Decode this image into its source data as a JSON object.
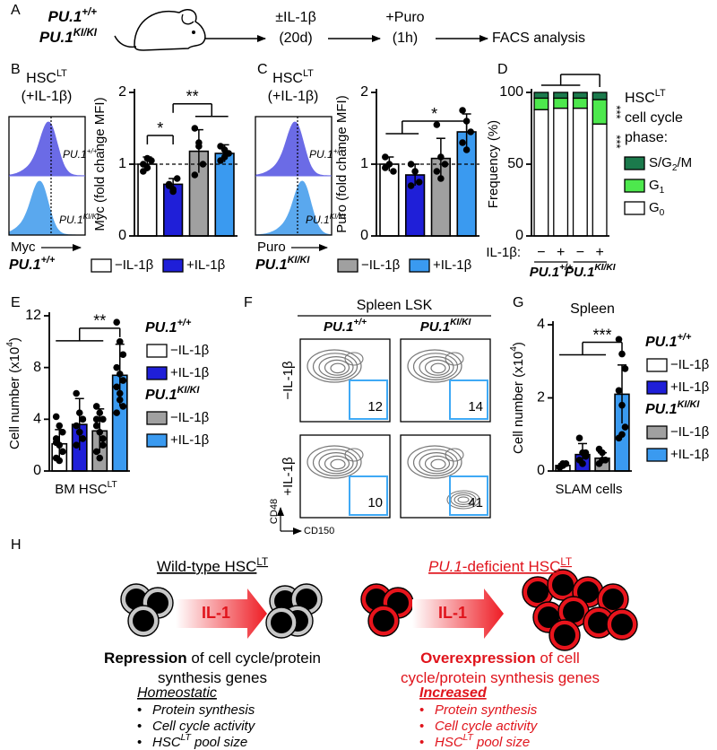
{
  "panel_labels": [
    "A",
    "B",
    "C",
    "D",
    "E",
    "F",
    "G",
    "H"
  ],
  "schematic": {
    "genotypes": [
      [
        {
          "text": "PU.1",
          "i": true
        },
        {
          "text": "+/+",
          "i": true,
          "sup": true
        }
      ],
      [
        {
          "text": "PU.1",
          "i": true
        },
        {
          "text": "KI/KI",
          "i": true,
          "sup": true
        }
      ]
    ],
    "steps": [
      [
        "±IL-1β",
        "(20d)"
      ],
      [
        "+Puro",
        "(1h)"
      ],
      [
        "FACS analysis"
      ]
    ]
  },
  "chart_data": [
    {
      "type": "bar",
      "categories": [
        null,
        null,
        null,
        null
      ],
      "colors": [
        "#ffffff",
        "#1f1fd8",
        "#a0a0a0",
        "#3a9af0"
      ],
      "values": [
        1.0,
        0.72,
        1.18,
        1.15
      ],
      "errors": [
        0.1,
        0.08,
        0.3,
        0.12
      ],
      "points": [
        [
          1.0,
          0.95,
          1.05,
          0.9,
          1.08
        ],
        [
          0.72,
          0.65,
          0.8,
          0.7,
          0.62
        ],
        [
          1.5,
          1.3,
          1.0,
          0.85,
          1.25
        ],
        [
          1.25,
          1.2,
          1.15,
          1.05,
          1.1
        ]
      ],
      "y_label": "Myc (fold change MFI)",
      "ylim": [
        0,
        2
      ],
      "yticks": [
        0,
        1,
        2
      ],
      "reference_line": 1,
      "annotations": [
        "*",
        "**"
      ],
      "histogram": {
        "title": [
          {
            "text": "HSC"
          },
          {
            "text": "LT",
            "sup": true
          }
        ],
        "subtitle": "(+IL-1β)",
        "tracks": [
          [
            {
              "text": "PU.1",
              "i": true
            },
            {
              "text": "+/+",
              "i": true,
              "sup": true
            }
          ],
          [
            {
              "text": "PU.1",
              "i": true
            },
            {
              "text": "KI/KI",
              "i": true,
              "sup": true
            }
          ]
        ],
        "x_label": "Myc"
      },
      "legend": [
        {
          "group": [
            {
              "text": "PU.1",
              "i": true
            },
            {
              "text": "+/+",
              "i": true,
              "sup": true
            }
          ],
          "entries": [
            {
              "label": "−IL-1β",
              "color": "#ffffff"
            },
            {
              "label": "+IL-1β",
              "color": "#1f1fd8"
            }
          ]
        }
      ]
    },
    {
      "type": "bar",
      "categories": [
        null,
        null,
        null,
        null
      ],
      "colors": [
        "#ffffff",
        "#1f1fd8",
        "#a0a0a0",
        "#3a9af0"
      ],
      "values": [
        1.0,
        0.85,
        1.08,
        1.45
      ],
      "errors": [
        0.1,
        0.15,
        0.28,
        0.25
      ],
      "points": [
        [
          1.1,
          1.0,
          0.9,
          0.95
        ],
        [
          1.0,
          0.9,
          0.75,
          0.7
        ],
        [
          1.55,
          1.1,
          1.0,
          0.9,
          0.8
        ],
        [
          1.75,
          1.6,
          1.45,
          1.3,
          1.2
        ]
      ],
      "y_label": "Puro (fold change MFI)",
      "ylim": [
        0,
        2
      ],
      "yticks": [
        0,
        1,
        2
      ],
      "reference_line": 1,
      "annotations": [
        "*"
      ],
      "histogram": {
        "title": [
          {
            "text": "HSC"
          },
          {
            "text": "LT",
            "sup": true
          }
        ],
        "subtitle": "(+IL-1β)",
        "tracks": [
          [
            {
              "text": "PU.1",
              "i": true
            },
            {
              "text": "+/+",
              "i": true,
              "sup": true
            }
          ],
          [
            {
              "text": "PU.1",
              "i": true
            },
            {
              "text": "KI/KI",
              "i": true,
              "sup": true
            }
          ]
        ],
        "x_label": "Puro"
      },
      "legend": [
        {
          "group": [
            {
              "text": "PU.1",
              "i": true
            },
            {
              "text": "KI/KI",
              "i": true,
              "sup": true
            }
          ],
          "entries": [
            {
              "label": "−IL-1β",
              "color": "#a0a0a0"
            },
            {
              "label": "+IL-1β",
              "color": "#3a9af0"
            }
          ]
        }
      ]
    },
    {
      "type": "stacked_bar",
      "categories": [
        "−",
        "+",
        "−",
        "+"
      ],
      "category_label": "IL-1β:",
      "groups": [
        [
          {
            "text": "PU.1",
            "i": true
          },
          {
            "text": "+/+",
            "i": true,
            "sup": true
          }
        ],
        [
          {
            "text": "PU.1",
            "i": true
          },
          {
            "text": "KI/KI",
            "i": true,
            "sup": true
          }
        ]
      ],
      "series": [
        {
          "name": [
            {
              "text": "G"
            },
            {
              "text": "0",
              "sub": true
            }
          ],
          "color": "#ffffff",
          "values": [
            88,
            89,
            89,
            78
          ]
        },
        {
          "name": [
            {
              "text": "G"
            },
            {
              "text": "1",
              "sub": true
            }
          ],
          "color": "#4de84d",
          "values": [
            8,
            7,
            7,
            17
          ]
        },
        {
          "name": [
            {
              "text": "S/G"
            },
            {
              "text": "2",
              "sub": true
            },
            {
              "text": "/M"
            }
          ],
          "color": "#1b7a4c",
          "values": [
            4,
            4,
            4,
            5
          ]
        }
      ],
      "legend_title": [
        [
          {
            "text": "HSC"
          },
          {
            "text": "LT",
            "sup": true
          }
        ],
        "cell cycle",
        "phase:"
      ],
      "y_label": "Frequency (%)",
      "ylim": [
        0,
        100
      ],
      "yticks": [
        0,
        50,
        100
      ],
      "annotations": [
        "***",
        "***"
      ]
    },
    {
      "type": "bar",
      "categories": [
        null,
        null,
        null,
        null
      ],
      "colors": [
        "#ffffff",
        "#1f1fd8",
        "#a0a0a0",
        "#3a9af0"
      ],
      "values": [
        2.1,
        3.6,
        3.1,
        7.4
      ],
      "errors": [
        1.1,
        2.0,
        1.7,
        2.4
      ],
      "points": [
        [
          4.2,
          3.5,
          3,
          2.5,
          2,
          1.5,
          1,
          0.8,
          1.5,
          2.2
        ],
        [
          6,
          4.5,
          4,
          3.5,
          3,
          2.5,
          2,
          3,
          4
        ],
        [
          5,
          4.5,
          4,
          3.5,
          3,
          2.5,
          1.5,
          1,
          2,
          4
        ],
        [
          11.5,
          10,
          9,
          8,
          7.5,
          7,
          6.5,
          5.5,
          5,
          4.5,
          6
        ]
      ],
      "y_label": [
        {
          "text": "Cell number (x10"
        },
        {
          "text": "4",
          "sup": true
        },
        {
          "text": ")"
        }
      ],
      "x_label": [
        {
          "text": "BM HSC"
        },
        {
          "text": "LT",
          "sup": true
        }
      ],
      "ylim": [
        0,
        12
      ],
      "yticks": [
        0,
        4,
        8,
        12
      ],
      "annotations": [
        "**"
      ],
      "legend": [
        {
          "group": [
            {
              "text": "PU.1",
              "i": true
            },
            {
              "text": "+/+",
              "i": true,
              "sup": true
            }
          ],
          "entries": [
            {
              "label": "−IL-1β",
              "color": "#ffffff"
            },
            {
              "label": "+IL-1β",
              "color": "#1f1fd8"
            }
          ]
        },
        {
          "group": [
            {
              "text": "PU.1",
              "i": true
            },
            {
              "text": "KI/KI",
              "i": true,
              "sup": true
            }
          ],
          "entries": [
            {
              "label": "−IL-1β",
              "color": "#a0a0a0"
            },
            {
              "label": "+IL-1β",
              "color": "#3a9af0"
            }
          ]
        }
      ]
    },
    {
      "type": "bar",
      "categories": [
        null,
        null,
        null,
        null
      ],
      "colors": [
        "#ffffff",
        "#1f1fd8",
        "#a0a0a0",
        "#3a9af0"
      ],
      "values": [
        0.15,
        0.45,
        0.35,
        2.1
      ],
      "errors": [
        0.05,
        0.3,
        0.15,
        0.8
      ],
      "points": [
        [
          0.1,
          0.15,
          0.2,
          0.1,
          0.2
        ],
        [
          0.9,
          0.5,
          0.4,
          0.3,
          0.2,
          0.5
        ],
        [
          0.6,
          0.5,
          0.3,
          0.2,
          0.3
        ],
        [
          3.6,
          3.2,
          2.8,
          2.2,
          1.8,
          1.2,
          0.9,
          1.0
        ]
      ],
      "title": "Spleen",
      "y_label": [
        {
          "text": "Cell number (x10"
        },
        {
          "text": "4",
          "sup": true
        },
        {
          "text": ")"
        }
      ],
      "x_label": "SLAM cells",
      "ylim": [
        0,
        4
      ],
      "yticks": [
        0,
        2,
        4
      ],
      "annotations": [
        "***"
      ],
      "legend": [
        {
          "group": [
            {
              "text": "PU.1",
              "i": true
            },
            {
              "text": "+/+",
              "i": true,
              "sup": true
            }
          ],
          "entries": [
            {
              "label": "−IL-1β",
              "color": "#ffffff"
            },
            {
              "label": "+IL-1β",
              "color": "#1f1fd8"
            }
          ]
        },
        {
          "group": [
            {
              "text": "PU.1",
              "i": true
            },
            {
              "text": "KI/KI",
              "i": true,
              "sup": true
            }
          ],
          "entries": [
            {
              "label": "−IL-1β",
              "color": "#a0a0a0"
            },
            {
              "label": "+IL-1β",
              "color": "#3a9af0"
            }
          ]
        }
      ]
    }
  ],
  "flow": {
    "title": "Spleen LSK",
    "columns": [
      [
        {
          "text": "PU.1",
          "i": true
        },
        {
          "text": "+/+",
          "i": true,
          "sup": true
        }
      ],
      [
        {
          "text": "PU.1",
          "i": true
        },
        {
          "text": "KI/KI",
          "i": true,
          "sup": true
        }
      ]
    ],
    "rows": [
      "−IL-1β",
      "+IL-1β"
    ],
    "gates": [
      [
        12,
        14
      ],
      [
        10,
        41
      ]
    ],
    "y_axis": "CD48",
    "x_axis": "CD150"
  },
  "model": {
    "bullet_marker": "•",
    "left": {
      "title": [
        {
          "text": "Wild-type HSC",
          "u": true
        },
        {
          "text": "LT",
          "sup": true,
          "u": true
        }
      ],
      "signal": "IL-1",
      "outcome": [
        [
          {
            "text": "Repression",
            "b": true
          },
          {
            "text": " of cell cycle/protein"
          }
        ],
        [
          {
            "text": "synthesis genes"
          }
        ]
      ],
      "heading": [
        {
          "text": "Homeostatic",
          "i": true,
          "u": true
        }
      ],
      "bullets": [
        [
          {
            "text": "Protein synthesis",
            "i": true
          }
        ],
        [
          {
            "text": "Cell cycle activity",
            "i": true
          }
        ],
        [
          {
            "text": "HSC",
            "i": true
          },
          {
            "text": "LT",
            "i": true,
            "sup": true
          },
          {
            "text": " pool size",
            "i": true
          }
        ]
      ],
      "color": "#000000"
    },
    "right": {
      "title": [
        {
          "text": "PU.1",
          "i": true,
          "u": true
        },
        {
          "text": "-deficient HSC",
          "u": true
        },
        {
          "text": "LT",
          "sup": true,
          "u": true
        }
      ],
      "signal": "IL-1",
      "outcome": [
        [
          {
            "text": "Overexpression",
            "b": true
          },
          {
            "text": " of cell"
          }
        ],
        [
          {
            "text": "cycle/protein synthesis genes"
          }
        ]
      ],
      "heading": [
        {
          "text": "Increased",
          "i": true,
          "u": true,
          "b": true
        }
      ],
      "bullets": [
        [
          {
            "text": "Protein synthesis",
            "i": true
          }
        ],
        [
          {
            "text": "Cell cycle activity",
            "i": true
          }
        ],
        [
          {
            "text": "HSC",
            "i": true
          },
          {
            "text": "LT",
            "i": true,
            "sup": true
          },
          {
            "text": " pool size",
            "i": true
          }
        ]
      ],
      "color": "#e0141c"
    }
  }
}
